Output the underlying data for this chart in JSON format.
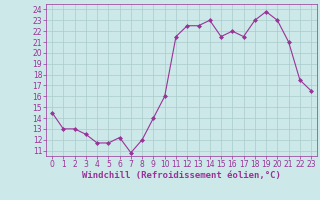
{
  "x": [
    0,
    1,
    2,
    3,
    4,
    5,
    6,
    7,
    8,
    9,
    10,
    11,
    12,
    13,
    14,
    15,
    16,
    17,
    18,
    19,
    20,
    21,
    22,
    23
  ],
  "y": [
    14.5,
    13.0,
    13.0,
    12.5,
    11.7,
    11.7,
    12.2,
    10.8,
    12.0,
    14.0,
    16.0,
    21.5,
    22.5,
    22.5,
    23.0,
    21.5,
    22.0,
    21.5,
    23.0,
    23.8,
    23.0,
    21.0,
    17.5,
    16.5
  ],
  "line_color": "#993399",
  "marker": "D",
  "marker_size": 2,
  "bg_color": "#cce8e8",
  "grid_color": "#aacccc",
  "xlabel": "Windchill (Refroidissement éolien,°C)",
  "xlabel_color": "#993399",
  "yticks": [
    11,
    12,
    13,
    14,
    15,
    16,
    17,
    18,
    19,
    20,
    21,
    22,
    23,
    24
  ],
  "xticks": [
    0,
    1,
    2,
    3,
    4,
    5,
    6,
    7,
    8,
    9,
    10,
    11,
    12,
    13,
    14,
    15,
    16,
    17,
    18,
    19,
    20,
    21,
    22,
    23
  ],
  "ylim": [
    10.5,
    24.5
  ],
  "xlim": [
    -0.5,
    23.5
  ],
  "tick_color": "#993399",
  "tick_fontsize": 5.5,
  "xlabel_fontsize": 6.5
}
